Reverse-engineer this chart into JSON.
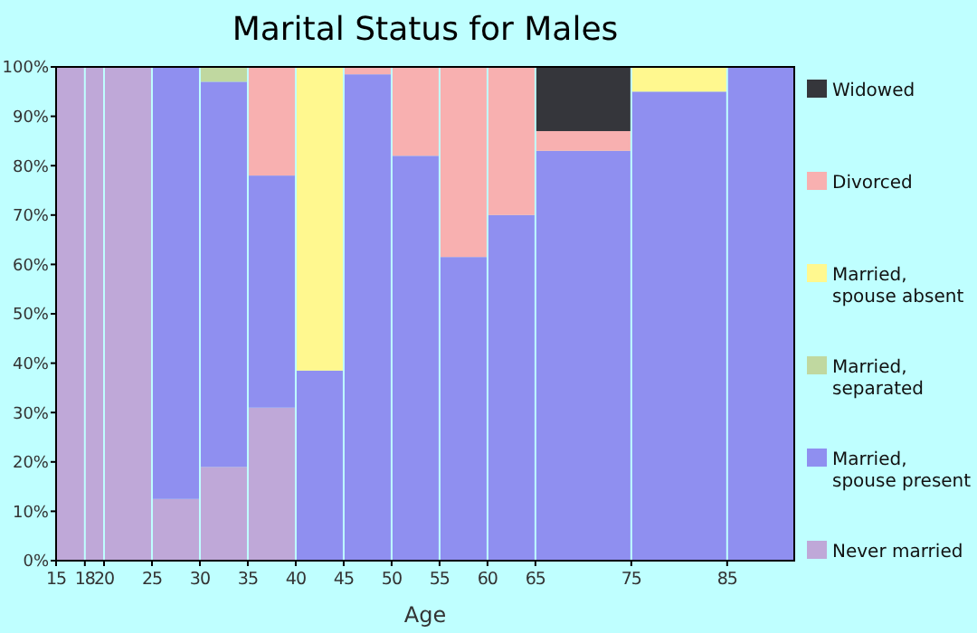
{
  "chart_data": {
    "type": "bar",
    "stacked": true,
    "title": "Marital Status for Males",
    "xlabel": "Age",
    "x": [
      16.5,
      19,
      22.5,
      27.5,
      32.5,
      37.5,
      42.5,
      47.5,
      52.5,
      57.5,
      62.5,
      70,
      80,
      88.5
    ],
    "xlim": [
      15,
      92
    ],
    "xticks": [
      15,
      18,
      20,
      25,
      30,
      35,
      40,
      45,
      50,
      55,
      60,
      65,
      75,
      85
    ],
    "ylim": [
      0,
      100
    ],
    "yticks": [
      {
        "value": 0,
        "label": "0%"
      },
      {
        "value": 10,
        "label": "10%"
      },
      {
        "value": 20,
        "label": "20%"
      },
      {
        "value": 30,
        "label": "30%"
      },
      {
        "value": 40,
        "label": "40%"
      },
      {
        "value": 50,
        "label": "50%"
      },
      {
        "value": 60,
        "label": "60%"
      },
      {
        "value": 70,
        "label": "70%"
      },
      {
        "value": 80,
        "label": "80%"
      },
      {
        "value": 90,
        "label": "90%"
      },
      {
        "value": 100,
        "label": "100%"
      }
    ],
    "legend": "right",
    "grid": false,
    "series": [
      {
        "name": "Never married",
        "color": "#bfa8d8",
        "values": [
          100,
          100,
          100,
          12.5,
          19,
          31,
          0,
          0,
          0,
          0,
          0,
          0,
          0,
          0
        ]
      },
      {
        "name": "Married, spouse present",
        "color": "#8f8ff0",
        "values": [
          0,
          0,
          0,
          87.5,
          78,
          47,
          38.5,
          98.5,
          82,
          61.5,
          70,
          83,
          95,
          100
        ]
      },
      {
        "name": "Married, separated",
        "color": "#c0d8a0",
        "values": [
          0,
          0,
          0,
          0,
          3,
          0,
          0,
          0,
          0,
          0,
          0,
          0,
          0,
          0
        ]
      },
      {
        "name": "Married, spouse absent",
        "color": "#fff88f",
        "values": [
          0,
          0,
          0,
          0,
          0,
          0,
          61.5,
          0,
          0,
          0,
          0,
          0,
          5,
          0
        ]
      },
      {
        "name": "Divorced",
        "color": "#f8b0b0",
        "values": [
          0,
          0,
          0,
          0,
          0,
          22,
          0,
          1.5,
          18,
          38.5,
          30,
          4,
          0,
          0
        ]
      },
      {
        "name": "Widowed",
        "color": "#35363b",
        "values": [
          0,
          0,
          0,
          0,
          0,
          0,
          0,
          0,
          0,
          0,
          0,
          13,
          0,
          0
        ]
      }
    ]
  }
}
